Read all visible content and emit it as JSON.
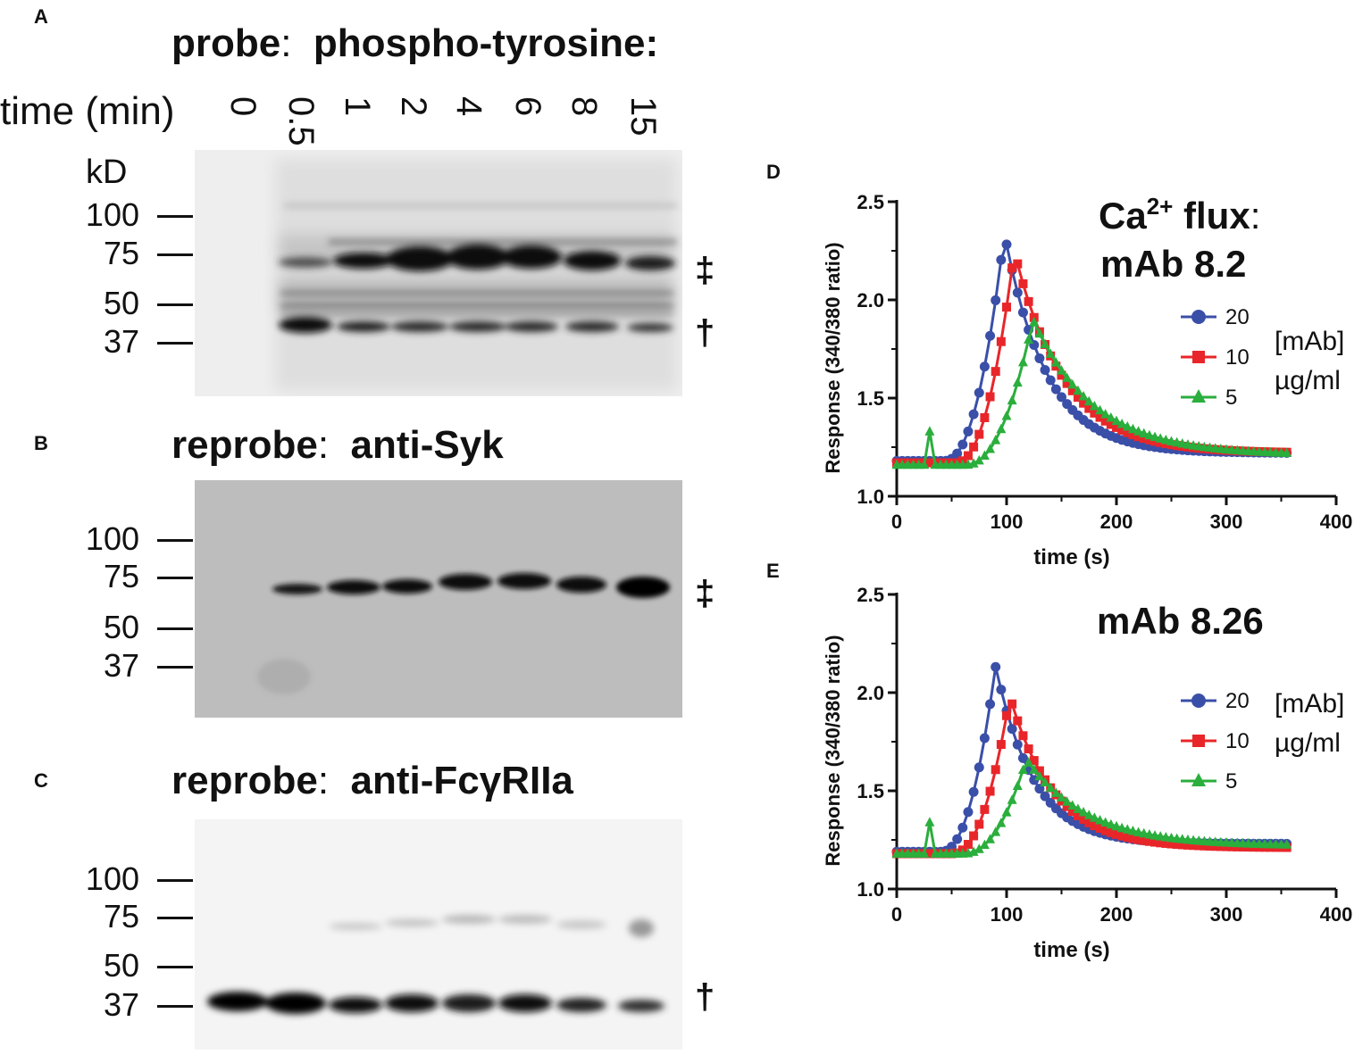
{
  "panels": {
    "A": {
      "letter": "A",
      "probe_label": "probe",
      "probe_target": "phospho-tyrosine:",
      "time_label": "time (min)",
      "times": [
        "0",
        "0.5",
        "1",
        "2",
        "4",
        "6",
        "8",
        "15"
      ],
      "mw_unit": "kD",
      "mw_markers": [
        "100",
        "75",
        "50",
        "37"
      ],
      "band_symbols": [
        "‡",
        "†"
      ]
    },
    "B": {
      "letter": "B",
      "probe_label": "reprobe",
      "probe_target": "anti-Syk",
      "mw_markers": [
        "100",
        "75",
        "50",
        "37"
      ],
      "band_symbols": [
        "‡"
      ]
    },
    "C": {
      "letter": "C",
      "probe_label": "reprobe",
      "probe_target": "anti-FcγRIIa",
      "mw_markers": [
        "100",
        "75",
        "50",
        "37"
      ],
      "band_symbols": [
        "†"
      ]
    }
  },
  "chart_data": [
    {
      "panel": "D",
      "type": "scatter",
      "title": "Ca²⁺ flux: mAb 8.2",
      "title_parts": {
        "main": "Ca",
        "sup": "2+",
        "rest": " flux",
        "colon": ":",
        "line2": "mAb 8.2"
      },
      "xlabel": "time (s)",
      "ylabel": "Response (340/380 ratio)",
      "xlim": [
        0,
        400
      ],
      "ylim": [
        1.0,
        2.5
      ],
      "xticks": [
        "0",
        "100",
        "200",
        "300",
        "400"
      ],
      "yticks": [
        "1.0",
        "1.5",
        "2.0",
        "2.5"
      ],
      "grid": false,
      "legend_title": [
        "[mAb]",
        "µg/ml"
      ],
      "legend_position": "right",
      "series": [
        {
          "name": "20",
          "marker": "circle",
          "color": "#3a4fa8",
          "t_peak": 98,
          "peak": 2.34,
          "t_rise": 63,
          "base": 1.18,
          "plateau": 1.22,
          "tau_decay": 38
        },
        {
          "name": "10",
          "marker": "square",
          "color": "#e8262a",
          "t_peak": 107,
          "peak": 2.25,
          "t_rise": 73,
          "base": 1.17,
          "plateau": 1.22,
          "tau_decay": 45
        },
        {
          "name": "5",
          "marker": "triangle",
          "color": "#2aae3c",
          "t_peak": 124,
          "peak": 1.9,
          "t_rise": 82,
          "base": 1.16,
          "plateau": 1.21,
          "tau_decay": 55,
          "spike_t": 30,
          "spike_v": 1.33
        }
      ]
    },
    {
      "panel": "E",
      "type": "scatter",
      "title": "mAb 8.26",
      "xlabel": "time (s)",
      "ylabel": "Response (340/380 ratio)",
      "xlim": [
        0,
        400
      ],
      "ylim": [
        1.0,
        2.5
      ],
      "xticks": [
        "0",
        "100",
        "200",
        "300",
        "400"
      ],
      "yticks": [
        "1.0",
        "1.5",
        "2.0",
        "2.5"
      ],
      "grid": false,
      "legend_title": [
        "[mAb]",
        "µg/ml"
      ],
      "legend_position": "right",
      "series": [
        {
          "name": "20",
          "marker": "circle",
          "color": "#3a4fa8",
          "t_peak": 90,
          "peak": 2.14,
          "t_rise": 60,
          "base": 1.19,
          "plateau": 1.23,
          "tau_decay": 34
        },
        {
          "name": "10",
          "marker": "square",
          "color": "#e8262a",
          "t_peak": 103,
          "peak": 1.98,
          "t_rise": 70,
          "base": 1.18,
          "plateau": 1.21,
          "tau_decay": 40
        },
        {
          "name": "5",
          "marker": "triangle",
          "color": "#2aae3c",
          "t_peak": 118,
          "peak": 1.66,
          "t_rise": 80,
          "base": 1.18,
          "plateau": 1.22,
          "tau_decay": 55,
          "spike_t": 30,
          "spike_v": 1.34
        }
      ]
    }
  ]
}
